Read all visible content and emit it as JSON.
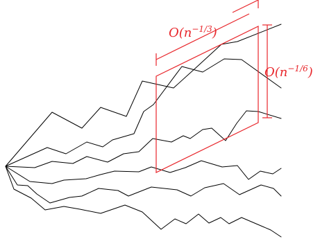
{
  "labels": {
    "horizontal": {
      "base": "O(n",
      "exp": "−1/3",
      "close": ")"
    },
    "vertical": {
      "base": "O(n",
      "exp": "−1/6",
      "close": ")"
    }
  },
  "colors": {
    "paths": "#000000",
    "annotation": "#e8262b"
  },
  "paths": [
    {
      "name": "path-1"
    },
    {
      "name": "path-2"
    },
    {
      "name": "path-3"
    },
    {
      "name": "path-4"
    },
    {
      "name": "path-5"
    },
    {
      "name": "path-6"
    }
  ]
}
